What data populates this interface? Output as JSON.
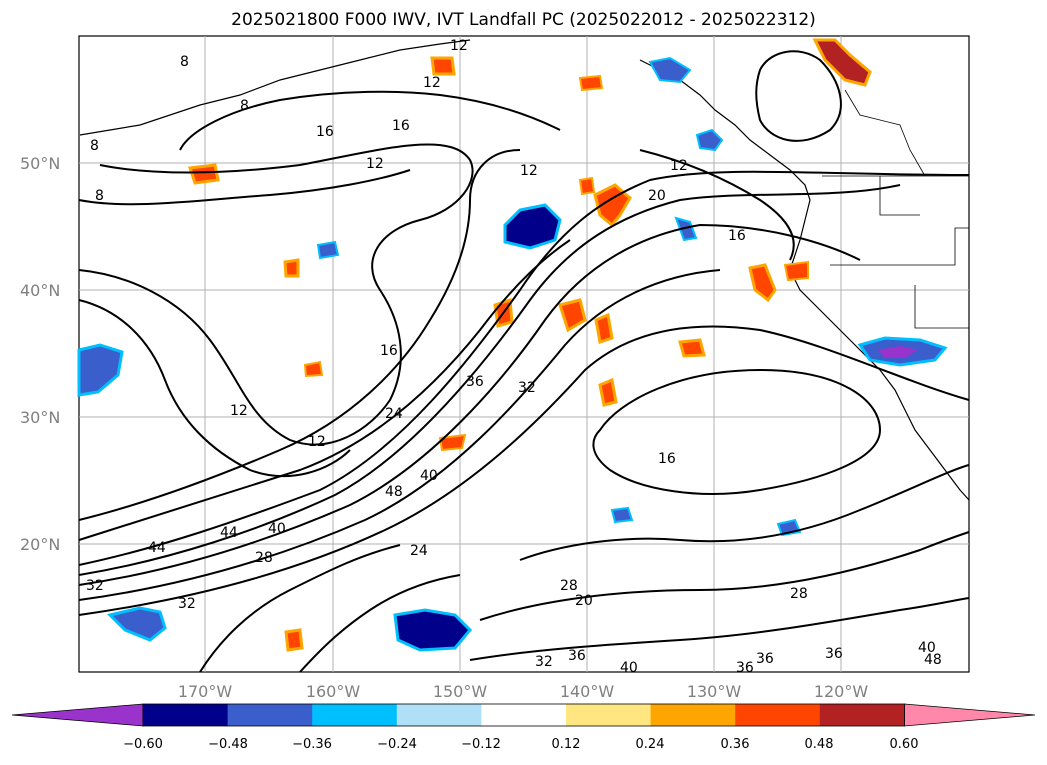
{
  "title": "2025021800 F000 IWV, IVT Landfall PC (2025022012 - 2025022312)",
  "map": {
    "lat_labels": [
      "50°N",
      "40°N",
      "30°N",
      "20°N"
    ],
    "lon_labels": [
      "170°W",
      "160°W",
      "150°W",
      "140°W",
      "130°W",
      "120°W"
    ],
    "contour_labels": [
      "8",
      "12",
      "16",
      "20",
      "24",
      "28",
      "32",
      "36",
      "40",
      "44",
      "48"
    ],
    "contour_color": "#000000",
    "grid_color": "#b0b0b0"
  },
  "colorbar": {
    "ticks": [
      "−0.60",
      "−0.48",
      "−0.36",
      "−0.24",
      "−0.12",
      "0.12",
      "0.24",
      "0.36",
      "0.48",
      "0.60"
    ],
    "colors": [
      "#9933cc",
      "#00008b",
      "#3a5fcd",
      "#00bfff",
      "#b0e0f8",
      "#ffffff",
      "#ffe680",
      "#ffa500",
      "#ff4500",
      "#b22222",
      "#ff88aa"
    ]
  }
}
